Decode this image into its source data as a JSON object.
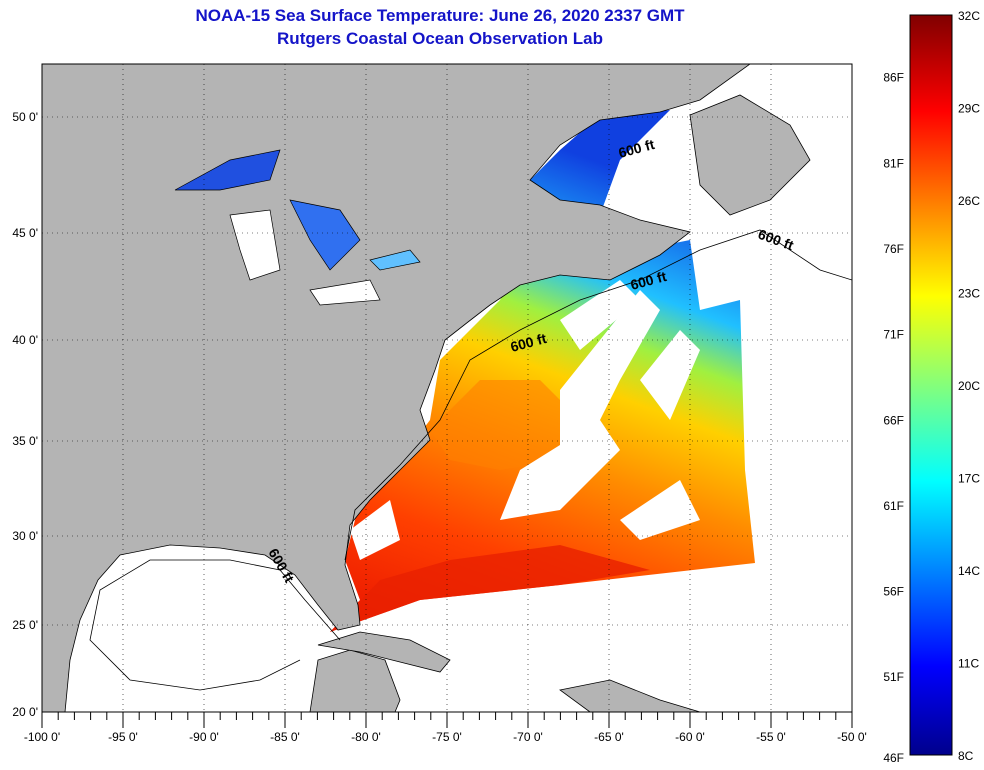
{
  "title": {
    "line1": "NOAA-15 Sea Surface Temperature:  June 26, 2020 2337 GMT",
    "line2": "Rutgers Coastal Ocean Observation Lab"
  },
  "map": {
    "lat_labels": [
      "50 0'",
      "45 0'",
      "40 0'",
      "35 0'",
      "30 0'",
      "25 0'",
      "20 0'"
    ],
    "lon_labels": [
      "-100 0'",
      "-95 0'",
      "-90 0'",
      "-85 0'",
      "-80 0'",
      "-75 0'",
      "-70 0'",
      "-65 0'",
      "-60 0'",
      "-55 0'",
      "-50 0'"
    ],
    "contour_labels": [
      "600 ft",
      "600 ft",
      "600 ft",
      "600 ft",
      "600 ft"
    ],
    "colors": {
      "land": "#b4b4b4",
      "ocean_nodata": "#ffffff"
    }
  },
  "colorbar": {
    "fahrenheit_labels": [
      "86F",
      "81F",
      "76F",
      "71F",
      "66F",
      "61F",
      "56F",
      "51F",
      "46F"
    ],
    "celsius_labels": [
      "32C",
      "29C",
      "26C",
      "23C",
      "20C",
      "17C",
      "14C",
      "11C",
      "8C"
    ],
    "range_c": [
      8,
      32
    ]
  }
}
